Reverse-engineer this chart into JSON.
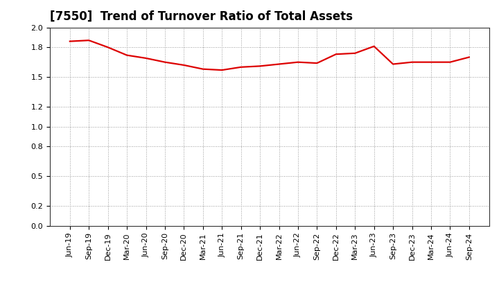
{
  "title": "[7550]  Trend of Turnover Ratio of Total Assets",
  "x_labels": [
    "Jun-19",
    "Sep-19",
    "Dec-19",
    "Mar-20",
    "Jun-20",
    "Sep-20",
    "Dec-20",
    "Mar-21",
    "Jun-21",
    "Sep-21",
    "Dec-21",
    "Mar-22",
    "Jun-22",
    "Sep-22",
    "Dec-22",
    "Mar-23",
    "Jun-23",
    "Sep-23",
    "Dec-23",
    "Mar-24",
    "Jun-24",
    "Sep-24"
  ],
  "y_values": [
    1.86,
    1.87,
    1.8,
    1.72,
    1.69,
    1.65,
    1.62,
    1.58,
    1.57,
    1.6,
    1.61,
    1.63,
    1.65,
    1.64,
    1.73,
    1.74,
    1.81,
    1.63,
    1.65,
    1.65,
    1.65,
    1.7
  ],
  "line_color": "#dd0000",
  "bg_color": "#ffffff",
  "plot_bg_color": "#ffffff",
  "grid_color": "#999999",
  "ylim": [
    0.0,
    2.0
  ],
  "yticks": [
    0.0,
    0.2,
    0.5,
    0.8,
    1.0,
    1.2,
    1.5,
    1.8,
    2.0
  ],
  "title_fontsize": 12,
  "tick_fontsize": 8,
  "line_width": 1.6
}
